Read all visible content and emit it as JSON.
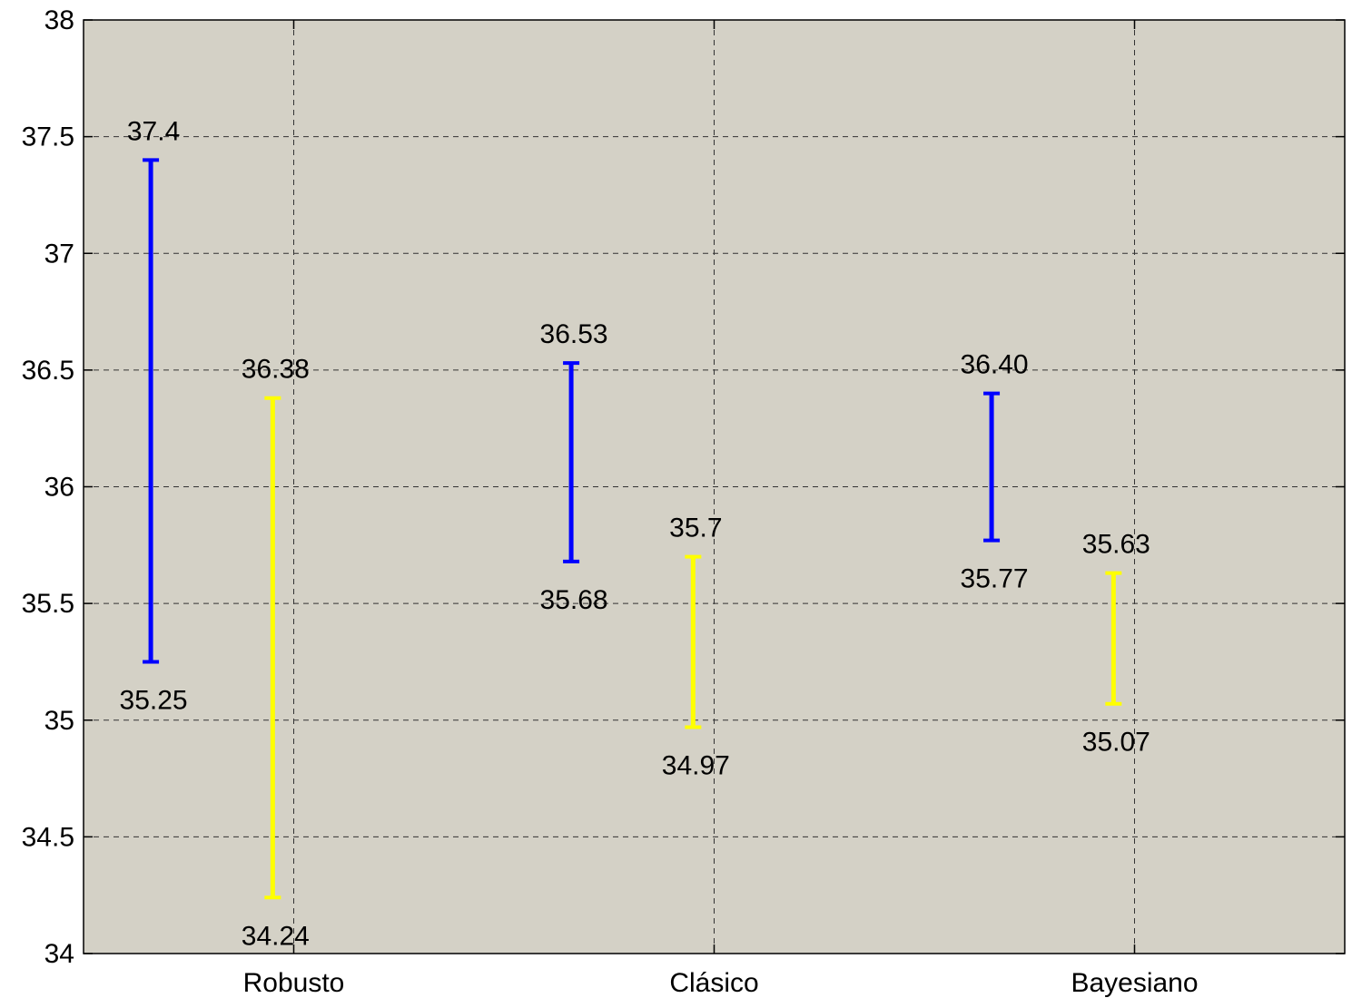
{
  "chart_data": {
    "type": "interval",
    "title": "",
    "xlabel": "",
    "ylabel": "",
    "ylim": [
      34,
      38
    ],
    "yticks": [
      "34",
      "34.5",
      "35",
      "35.5",
      "36",
      "36.5",
      "37",
      "37.5",
      "38"
    ],
    "grid": true,
    "categories": [
      "Robusto",
      "Clásico",
      "Bayesiano"
    ],
    "colors": {
      "plot_bg": "#d4d1c6",
      "blue": "#0000ff",
      "yellow": "#ffff00",
      "grid": "#333333"
    },
    "series": [
      {
        "color": "blue",
        "intervals": [
          {
            "low": 35.25,
            "high": 37.4,
            "low_label": "35.25",
            "high_label": "37.4"
          },
          {
            "low": 35.68,
            "high": 36.53,
            "low_label": "35.68",
            "high_label": "36.53"
          },
          {
            "low": 35.77,
            "high": 36.4,
            "low_label": "35.77",
            "high_label": "36.40"
          }
        ]
      },
      {
        "color": "yellow",
        "intervals": [
          {
            "low": 34.24,
            "high": 36.38,
            "low_label": "34.24",
            "high_label": "36.38"
          },
          {
            "low": 34.97,
            "high": 35.7,
            "low_label": "34.97",
            "high_label": "35.7"
          },
          {
            "low": 35.07,
            "high": 35.63,
            "low_label": "35.07",
            "high_label": "35.63"
          }
        ]
      }
    ]
  }
}
